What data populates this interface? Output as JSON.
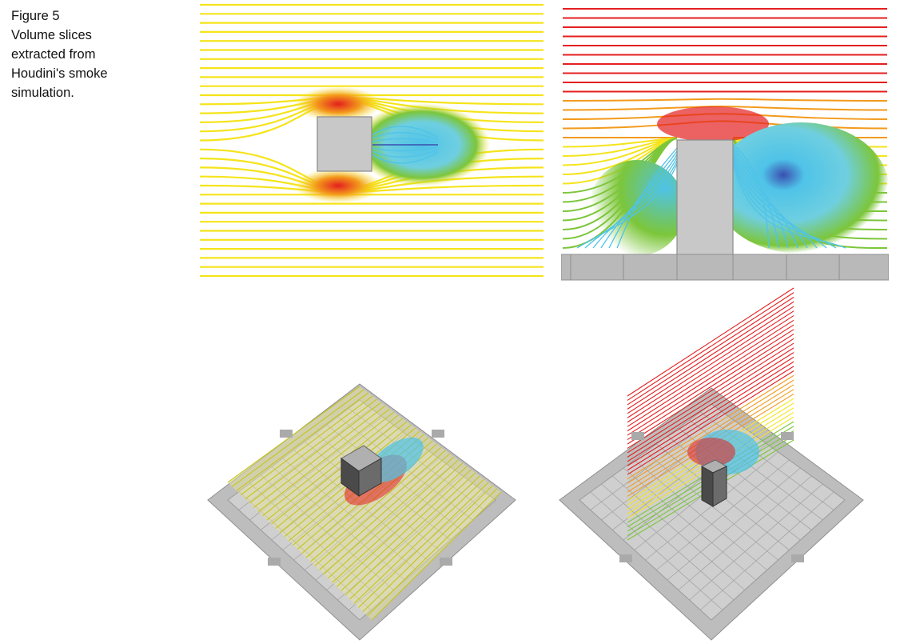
{
  "caption": {
    "figure_label": "Figure 5",
    "lines": [
      "Volume slices",
      "extracted from",
      "Houdini's smoke",
      "simulation."
    ]
  },
  "panels": {
    "top_left": {
      "view": "top-down horizontal slice"
    },
    "top_right": {
      "view": "side vertical slice"
    },
    "bottom_left": {
      "view": "perspective horizontal slice"
    },
    "bottom_right": {
      "view": "perspective vertical slice"
    }
  },
  "colors": {
    "slow": "#3a4fb0",
    "low": "#4fc3e8",
    "mid_low": "#7cc63a",
    "mid": "#f5e41a",
    "mid_high": "#f39a1c",
    "high": "#e41f1f",
    "obstacle": "#c8c8c8",
    "ground": "#b9b9b9"
  }
}
